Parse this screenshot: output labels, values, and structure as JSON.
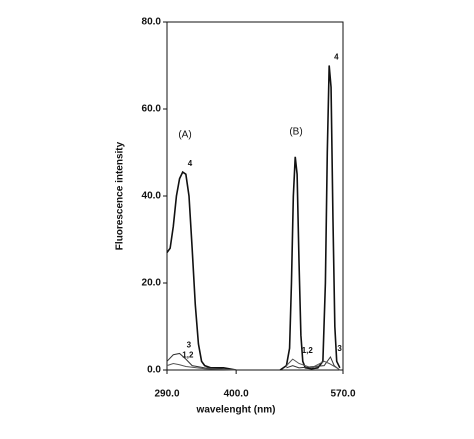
{
  "chart_data": {
    "type": "line",
    "xlabel": "wavelenght (nm)",
    "ylabel": "Fluorescence intensity",
    "annotations": [
      "(A)",
      "(B)"
    ],
    "xlim": [
      290,
      570
    ],
    "xticks": [
      {
        "value": 290,
        "label": "290.0"
      },
      {
        "value": 400,
        "label": "400.0"
      },
      {
        "value": 570,
        "label": "570.0"
      }
    ],
    "ylim": [
      0,
      80
    ],
    "yticks": [
      {
        "value": 0,
        "label": "0.0"
      },
      {
        "value": 20,
        "label": "20.0"
      },
      {
        "value": 40,
        "label": "40.0"
      },
      {
        "value": 60,
        "label": "60.0"
      },
      {
        "value": 80,
        "label": "80.0"
      }
    ],
    "series": [
      {
        "name": "4",
        "color": "#111111",
        "x": [
          290,
          295,
          300,
          305,
          310,
          315,
          320,
          325,
          330,
          335,
          340,
          345,
          350,
          360,
          380,
          400,
          430,
          470,
          480,
          485,
          488,
          491,
          494,
          497,
          500,
          503,
          506,
          510,
          520,
          530,
          538,
          542,
          545,
          548,
          551,
          554,
          557,
          560,
          565
        ],
        "values": [
          27,
          28,
          33,
          40,
          44,
          45.5,
          45,
          40,
          28,
          15,
          6,
          2,
          1,
          0.5,
          0.5,
          0,
          null,
          0,
          1,
          5,
          20,
          40,
          49,
          45,
          25,
          8,
          2,
          0.5,
          0.3,
          0.5,
          2,
          20,
          50,
          70,
          65,
          35,
          10,
          2,
          0.5
        ]
      },
      {
        "name": "3",
        "color": "#333333",
        "x": [
          290,
          300,
          310,
          320,
          330,
          350,
          400,
          430,
          480,
          490,
          500,
          540,
          550,
          556,
          565
        ],
        "values": [
          2,
          3.5,
          3.8,
          2.5,
          1,
          0.5,
          0,
          null,
          0.5,
          1,
          0.5,
          1,
          3,
          1,
          0
        ]
      },
      {
        "name": "1,2",
        "color": "#555555",
        "x": [
          290,
          300,
          310,
          320,
          350,
          400,
          430,
          480,
          490,
          500,
          520,
          540,
          548,
          560,
          565
        ],
        "values": [
          1,
          1.5,
          1.2,
          0.8,
          0.3,
          0,
          null,
          1,
          2.5,
          1.5,
          0.5,
          2,
          1.5,
          0.5,
          0
        ]
      }
    ]
  }
}
